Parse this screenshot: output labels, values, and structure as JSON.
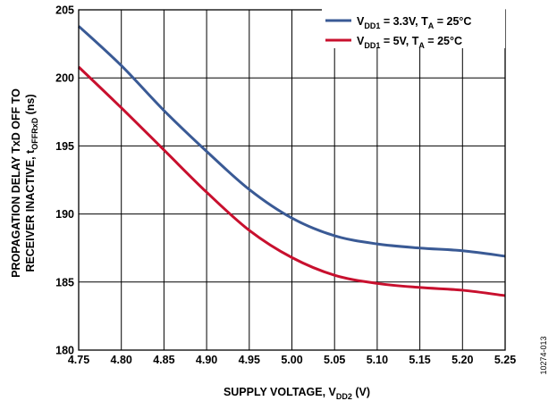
{
  "chart_data": {
    "type": "line",
    "xlabel": {
      "main": "SUPPLY VOLTAGE, V",
      "sub": "DD2",
      "tail": " (V)"
    },
    "ylabel": {
      "line1": "PROPAGATION DELAY TxD OFF TO",
      "line2_main": "RECEIVER INACTIVE, t",
      "line2_sub": "OFFRxD",
      "line2_tail": " (ns)"
    },
    "xlim": [
      4.75,
      5.25
    ],
    "ylim": [
      180,
      205
    ],
    "xticks": [
      "4.75",
      "4.80",
      "4.85",
      "4.90",
      "4.95",
      "5.00",
      "5.05",
      "5.10",
      "5.15",
      "5.20",
      "5.25"
    ],
    "yticks": [
      "180",
      "185",
      "190",
      "195",
      "200",
      "205"
    ],
    "grid": true,
    "legend_position": "top-right",
    "series": [
      {
        "name": "VDD1 = 3.3V, TA = 25°C",
        "legend": {
          "p1": "V",
          "s1": "DD1",
          "p2": " = 3.3V, T",
          "s2": "A",
          "p3": " = 25°C"
        },
        "color": "#3a5a95",
        "x": [
          4.75,
          4.8,
          4.85,
          4.9,
          4.95,
          5.0,
          5.05,
          5.1,
          5.15,
          5.2,
          5.25
        ],
        "y": [
          203.8,
          200.9,
          197.6,
          194.6,
          191.8,
          189.7,
          188.4,
          187.8,
          187.5,
          187.3,
          186.9
        ]
      },
      {
        "name": "VDD1 = 5V, TA = 25°C",
        "legend": {
          "p1": "V",
          "s1": "DD1",
          "p2": " = 5V, T",
          "s2": "A",
          "p3": " = 25°C"
        },
        "color": "#c8102e",
        "x": [
          4.75,
          4.8,
          4.85,
          4.9,
          4.95,
          5.0,
          5.05,
          5.1,
          5.15,
          5.2,
          5.25
        ],
        "y": [
          200.8,
          197.8,
          194.7,
          191.6,
          188.8,
          186.8,
          185.5,
          184.9,
          184.6,
          184.4,
          184.0
        ]
      }
    ]
  },
  "figure_id": "10274-013"
}
